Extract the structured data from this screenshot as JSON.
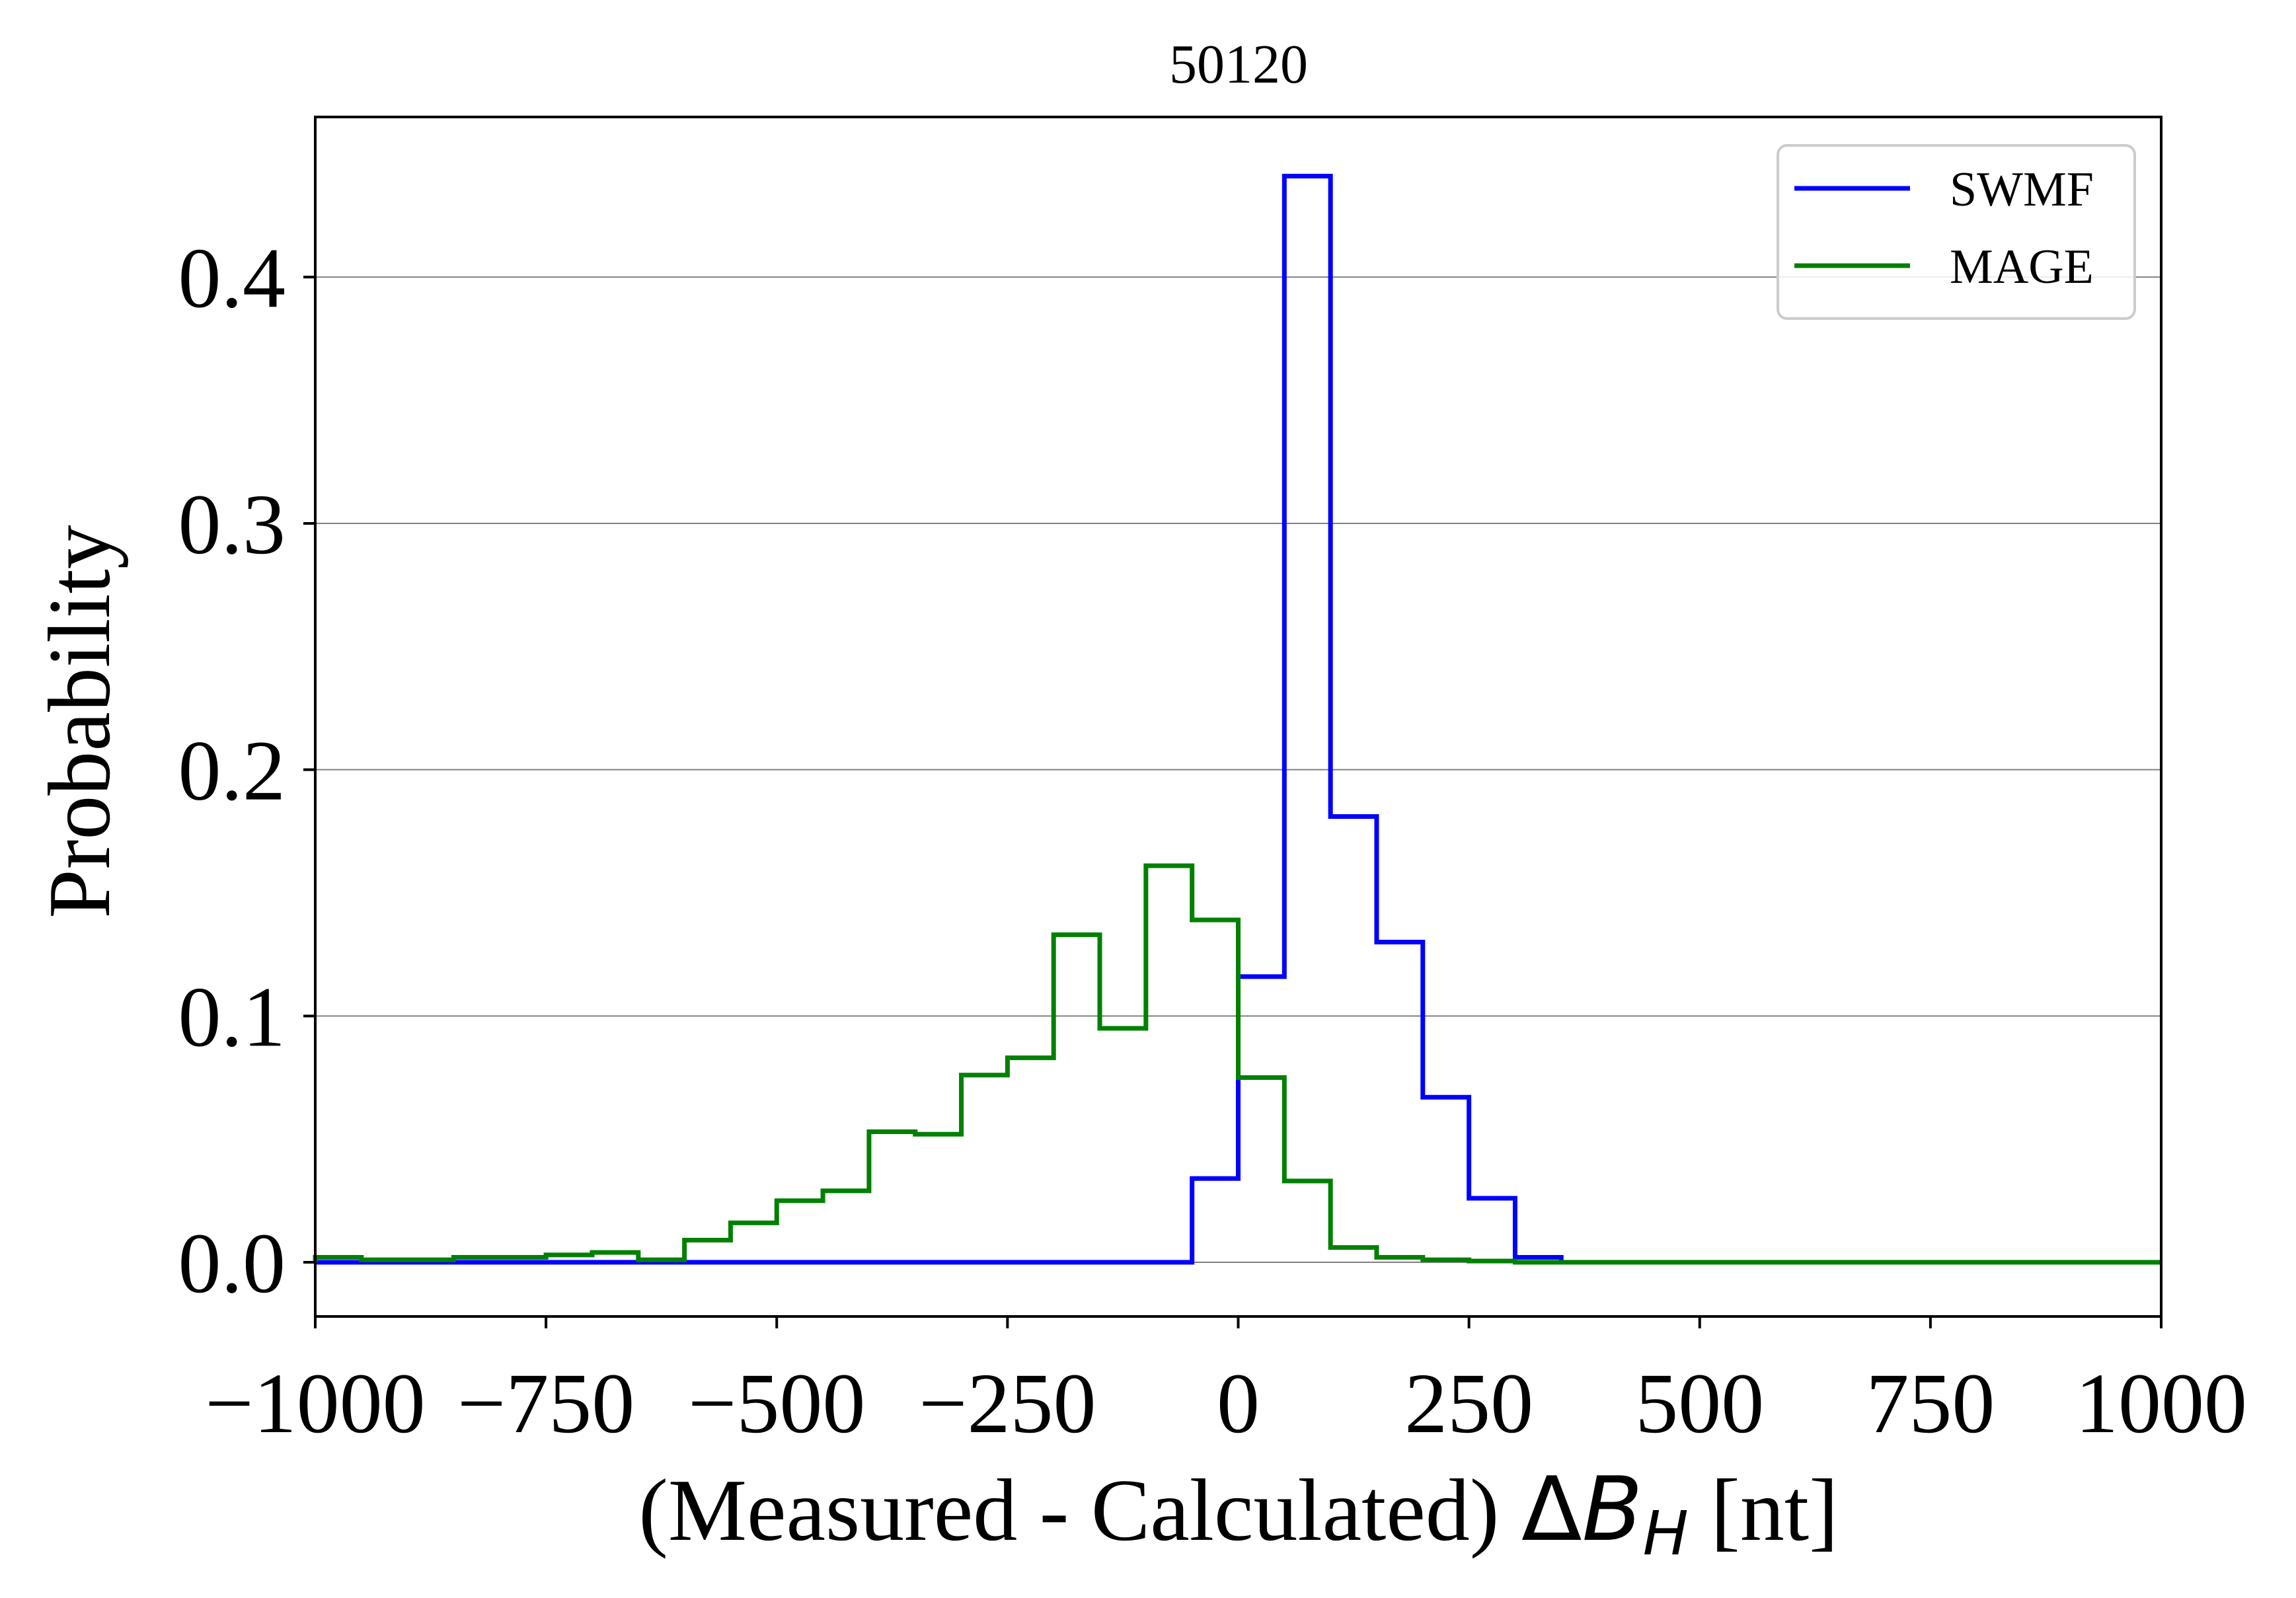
{
  "chart_data": {
    "type": "line",
    "title": "50120",
    "xlabel": "(Measured - Calculated)",
    "xlabel_math": {
      "delta": "Δ",
      "var": "B",
      "sub": "H"
    },
    "xlabel_unit": "[nt]",
    "ylabel": "Probability",
    "xlim": [
      -1000,
      1000
    ],
    "ylim": [
      -0.022,
      0.465
    ],
    "xticks": [
      -1000,
      -750,
      -500,
      -250,
      0,
      250,
      500,
      750,
      1000
    ],
    "xtick_labels": [
      "−1000",
      "−750",
      "−500",
      "−250",
      "0",
      "250",
      "500",
      "750",
      "1000"
    ],
    "yticks": [
      0.0,
      0.1,
      0.2,
      0.3,
      0.4
    ],
    "ytick_labels": [
      "0.0",
      "0.1",
      "0.2",
      "0.3",
      "0.4"
    ],
    "grid": {
      "y": true,
      "x": false
    },
    "legend_position": "top-right",
    "bin_edges": [
      -1000,
      -950,
      -900,
      -850,
      -800,
      -750,
      -700,
      -650,
      -600,
      -550,
      -500,
      -450,
      -400,
      -350,
      -300,
      -250,
      -200,
      -150,
      -100,
      -50,
      0,
      50,
      100,
      150,
      200,
      250,
      300,
      350,
      400,
      450,
      500,
      550,
      600,
      650,
      700,
      750,
      800,
      850,
      900,
      950,
      1000
    ],
    "series": [
      {
        "name": "SWMF",
        "color": "#0000ff",
        "values": [
          0,
          0,
          0,
          0,
          0,
          0,
          0,
          0,
          0,
          0,
          0,
          0,
          0,
          0,
          0,
          0,
          0,
          0,
          0,
          0.034,
          0.116,
          0.441,
          0.181,
          0.13,
          0.067,
          0.026,
          0.002,
          0,
          0,
          0,
          0,
          0,
          0,
          0,
          0,
          0,
          0,
          0,
          0,
          0
        ]
      },
      {
        "name": "MAGE",
        "color": "#008000",
        "values": [
          0.002,
          0.001,
          0.001,
          0.002,
          0.002,
          0.003,
          0.004,
          0.001,
          0.009,
          0.016,
          0.025,
          0.029,
          0.053,
          0.052,
          0.076,
          0.083,
          0.133,
          0.095,
          0.161,
          0.139,
          0.075,
          0.033,
          0.006,
          0.002,
          0.001,
          0.0005,
          0,
          0,
          0,
          0,
          0,
          0,
          0,
          0,
          0,
          0,
          0,
          0,
          0,
          0
        ]
      }
    ]
  }
}
